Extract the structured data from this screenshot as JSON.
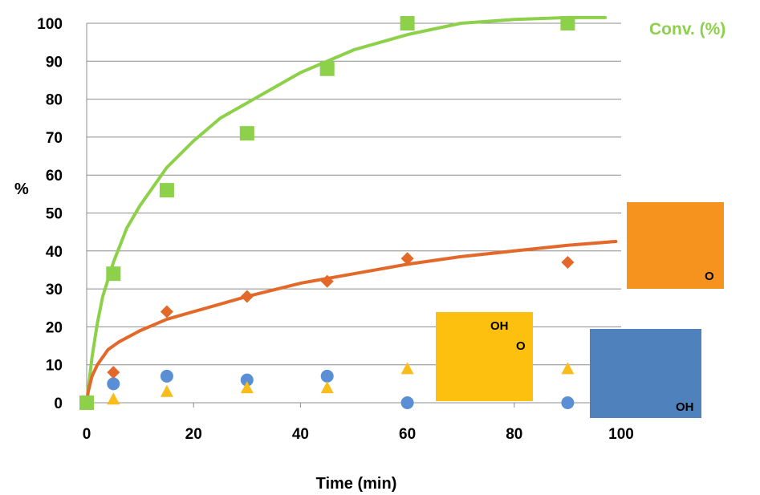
{
  "chart_data": {
    "type": "scatter",
    "xlabel": "Time (min)",
    "ylabel": "%",
    "xlim": [
      0,
      100
    ],
    "ylim": [
      0,
      100
    ],
    "xticks": [
      "0",
      "20",
      "40",
      "60",
      "80",
      "100"
    ],
    "yticks": [
      "0",
      "10",
      "20",
      "30",
      "40",
      "50",
      "60",
      "70",
      "80",
      "90",
      "100"
    ],
    "grid": "horizontal",
    "series": [
      {
        "name": "Conv. (%)",
        "marker": "square",
        "color": "#8dd04a",
        "x": [
          0,
          5,
          15,
          30,
          45,
          60,
          90
        ],
        "y": [
          0,
          34,
          56,
          71,
          88,
          100,
          100
        ],
        "trendline": {
          "x": [
            0,
            1,
            2,
            3,
            5,
            7.5,
            10,
            15,
            20,
            25,
            30,
            40,
            50,
            60,
            70,
            80,
            90,
            97
          ],
          "y": [
            0,
            12,
            21,
            28,
            37,
            46,
            52,
            62,
            69,
            75,
            79,
            87,
            93,
            97,
            100,
            101,
            101.5,
            101.5
          ]
        }
      },
      {
        "marker": "diamond",
        "color": "#e2692a",
        "x": [
          0,
          5,
          15,
          30,
          45,
          60,
          90
        ],
        "y": [
          0,
          8,
          24,
          28,
          32,
          38,
          37
        ],
        "trendline": {
          "x": [
            0,
            0.3,
            1,
            2,
            4,
            6,
            10,
            15,
            20,
            30,
            40,
            50,
            60,
            70,
            80,
            90,
            99
          ],
          "y": [
            0,
            3,
            7,
            10,
            14,
            16,
            19,
            22,
            24,
            28,
            31.5,
            34,
            36.5,
            38.5,
            40,
            41.5,
            42.5
          ]
        }
      },
      {
        "marker": "triangle",
        "color": "#f8bc1b",
        "x": [
          0,
          5,
          15,
          30,
          45,
          60,
          90
        ],
        "y": [
          0,
          1,
          3,
          4,
          4,
          9,
          9
        ]
      },
      {
        "marker": "circle",
        "color": "#5a8fd6",
        "x": [
          0,
          5,
          15,
          30,
          45,
          60,
          90
        ],
        "y": [
          0,
          5,
          7,
          6,
          7,
          0,
          0
        ]
      }
    ],
    "structure_labels": {
      "orange": "O",
      "yellow_oh": "OH",
      "yellow_o": "O",
      "blue_oh": "OH"
    }
  }
}
